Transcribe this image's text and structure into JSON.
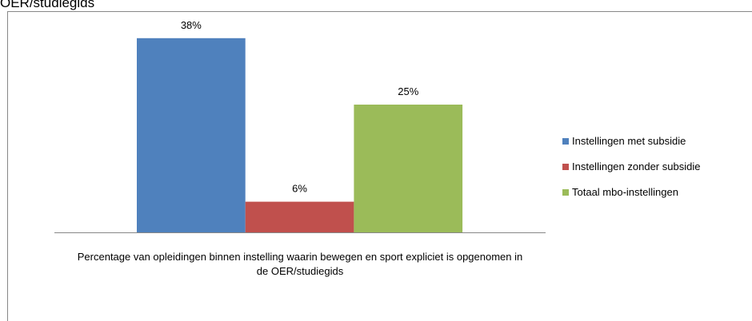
{
  "header": {
    "title": "OER/studiegids"
  },
  "chart_data": {
    "type": "bar",
    "categories": [
      "Percentage van opleidingen binnen instelling waarin bewegen en sport expliciet is opgenomen in de OER/studiegids"
    ],
    "series": [
      {
        "name": "Instellingen met subsidie",
        "color": "#4f81bd",
        "values": [
          38
        ],
        "value_labels": [
          "38%"
        ]
      },
      {
        "name": "Instellingen zonder subsidie",
        "color": "#c0504d",
        "values": [
          6
        ],
        "value_labels": [
          "6%"
        ]
      },
      {
        "name": "Totaal mbo-instellingen",
        "color": "#9bbb59",
        "values": [
          25
        ],
        "value_labels": [
          "25%"
        ]
      }
    ],
    "legend": "right"
  }
}
